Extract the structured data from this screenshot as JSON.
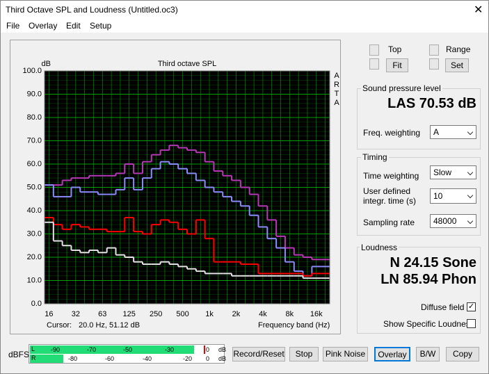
{
  "window": {
    "title": "Third Octave SPL and Loudness (Untitled.oc3)"
  },
  "menu": [
    "File",
    "Overlay",
    "Edit",
    "Setup"
  ],
  "chart_data": {
    "type": "step",
    "title": "Third octave SPL",
    "y_label": "dB",
    "x_label": "Frequency band (Hz)",
    "side_label_letters": [
      "A",
      "R",
      "T",
      "A"
    ],
    "cursor_label": "Cursor:",
    "cursor_value": "20.0 Hz, 51.12 dB",
    "categories": [
      "16",
      null,
      null,
      "32",
      null,
      null,
      "63",
      null,
      null,
      "125",
      null,
      null,
      "250",
      null,
      null,
      "500",
      null,
      null,
      "1k",
      null,
      null,
      "2k",
      null,
      null,
      "4k",
      null,
      null,
      "8k",
      null,
      null,
      "16k",
      null
    ],
    "series": [
      {
        "color": "#b838b8",
        "values": [
          51,
          51,
          53,
          54,
          54,
          55,
          55,
          55,
          56,
          60,
          56,
          61,
          64,
          66,
          68,
          67,
          66,
          65,
          61,
          57,
          55,
          53,
          50,
          47,
          42,
          36,
          29,
          24,
          21,
          20,
          19,
          19
        ]
      },
      {
        "color": "#8c8cff",
        "values": [
          51,
          46,
          46,
          50,
          48,
          48,
          47,
          47,
          49,
          54,
          49,
          54,
          58,
          61,
          60,
          58,
          56,
          53,
          50,
          48,
          46,
          44,
          42,
          38,
          33,
          28,
          24,
          18,
          14,
          12,
          16,
          16
        ]
      },
      {
        "color": "#ff0000",
        "values": [
          37,
          34,
          32,
          34,
          33,
          32,
          32,
          31,
          31,
          37,
          31,
          30,
          34,
          36,
          35,
          32,
          30,
          36,
          28,
          18,
          18,
          18,
          17,
          17,
          13,
          13,
          13,
          13,
          13,
          12,
          13,
          13
        ]
      },
      {
        "color": "#e4e4e4",
        "values": [
          35,
          27,
          25,
          23,
          22,
          23,
          22,
          24,
          21,
          20,
          18,
          17,
          17,
          18,
          17,
          16,
          15,
          14,
          13,
          13,
          13,
          12,
          12,
          12,
          12,
          12,
          12,
          12,
          12,
          11,
          11,
          11
        ]
      }
    ],
    "ylim": [
      0,
      100
    ],
    "yticks": [
      {
        "value": 0,
        "label": "0.0"
      },
      {
        "value": 10,
        "label": "10.0"
      },
      {
        "value": 20,
        "label": "20.0"
      },
      {
        "value": 30,
        "label": "30.0"
      },
      {
        "value": 40,
        "label": "40.0"
      },
      {
        "value": 50,
        "label": "50.0"
      },
      {
        "value": 60,
        "label": "60.0"
      },
      {
        "value": 70,
        "label": "70.0"
      },
      {
        "value": 80,
        "label": "80.0"
      },
      {
        "value": 90,
        "label": "90.0"
      },
      {
        "value": 100,
        "label": "100.0"
      }
    ],
    "grid": true,
    "grid_color": "#00a000",
    "background": "#000000"
  },
  "scale": {
    "top_label": "Top",
    "fit_button": "Fit",
    "range_label": "Range",
    "set_button": "Set"
  },
  "spl": {
    "group": "Sound pressure level",
    "reading": "LAS 70.53 dB",
    "weighting_label": "Freq. weighting",
    "weighting_value": "A"
  },
  "timing": {
    "group": "Timing",
    "time_weighting_label": "Time weighting",
    "time_weighting_value": "Slow",
    "integr_label_1": "User defined",
    "integr_label_2": "integr. time (s)",
    "integr_value": "10",
    "sampling_label": "Sampling rate",
    "sampling_value": "48000"
  },
  "loudness": {
    "group": "Loudness",
    "n": "N 24.15 Sone",
    "ln": "LN 85.94 Phon",
    "diffuse": "Diffuse field",
    "specific": "Show Specific Loudness"
  },
  "meter": {
    "label": "dBFS",
    "left": "L",
    "right": "R",
    "top_scale": [
      "-90",
      "-70",
      "-50",
      "-30",
      "0",
      "dB"
    ],
    "bottom_scale": [
      "-80",
      "-60",
      "-40",
      "-20",
      "0",
      "dB"
    ]
  },
  "buttons": [
    "Record/Reset",
    "Stop",
    "Pink Noise",
    "Overlay",
    "B/W",
    "Copy"
  ]
}
